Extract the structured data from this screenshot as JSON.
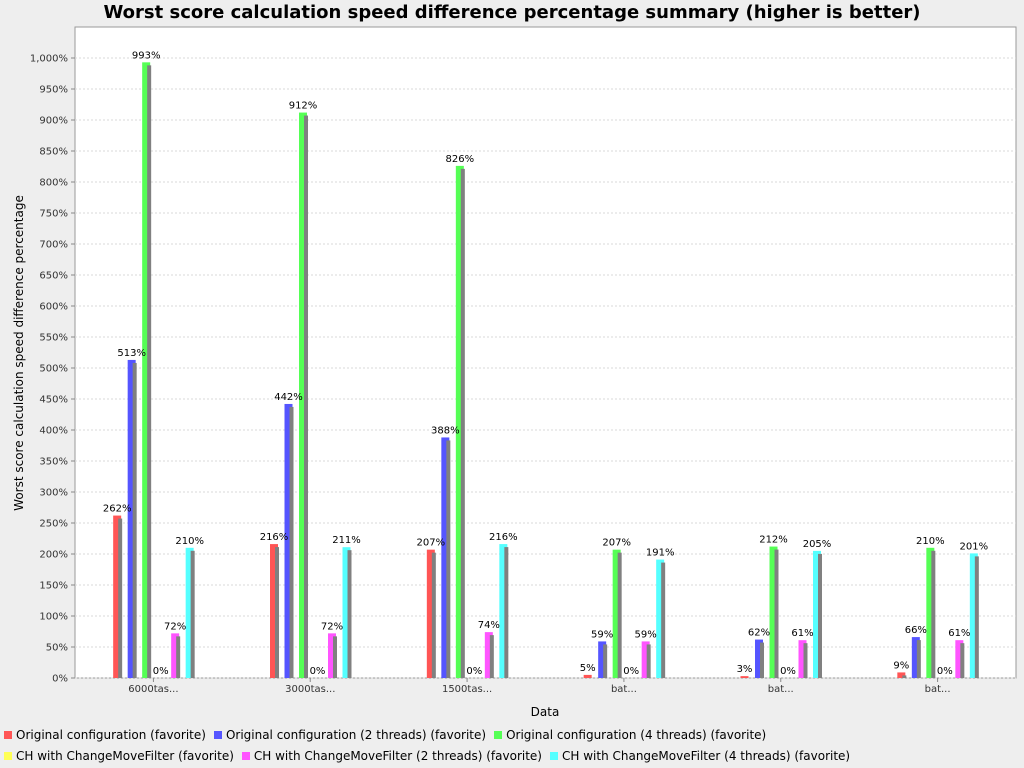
{
  "chart_data": {
    "type": "bar",
    "title": "Worst score calculation speed difference percentage summary (higher is better)",
    "xlabel": "Data",
    "ylabel": "Worst score calculation speed difference percentage",
    "ylim": [
      0,
      1050
    ],
    "y_tick_step": 50,
    "grid": true,
    "legend_position": "bottom",
    "categories": [
      "6000tas...",
      "3000tas...",
      "1500tas...",
      "bat...",
      "bat...",
      "bat..."
    ],
    "series": [
      {
        "name": "Original configuration (favorite)",
        "color": "#ff5555",
        "values": [
          262,
          216,
          207,
          5,
          3,
          9
        ],
        "labels": [
          "262%",
          "216%",
          "207%",
          "5%",
          "3%",
          "9%"
        ]
      },
      {
        "name": "Original configuration (2 threads) (favorite)",
        "color": "#5555ff",
        "values": [
          513,
          442,
          388,
          59,
          62,
          66
        ],
        "labels": [
          "513%",
          "442%",
          "388%",
          "59%",
          "62%",
          "66%"
        ]
      },
      {
        "name": "Original configuration (4 threads) (favorite)",
        "color": "#55ff55",
        "values": [
          993,
          912,
          826,
          207,
          212,
          210
        ],
        "labels": [
          "993%",
          "912%",
          "826%",
          "207%",
          "212%",
          "210%"
        ]
      },
      {
        "name": "CH with ChangeMoveFilter (favorite)",
        "color": "#ffff55",
        "values": [
          0,
          0,
          0,
          0,
          0,
          0
        ],
        "labels": [
          "0%",
          "0%",
          "0%",
          "0%",
          "0%",
          "0%"
        ]
      },
      {
        "name": "CH with ChangeMoveFilter (2 threads) (favorite)",
        "color": "#ff55ff",
        "values": [
          72,
          72,
          74,
          59,
          61,
          61
        ],
        "labels": [
          "72%",
          "72%",
          "74%",
          "59%",
          "61%",
          "61%"
        ]
      },
      {
        "name": "CH with ChangeMoveFilter (4 threads) (favorite)",
        "color": "#55ffff",
        "values": [
          210,
          211,
          216,
          191,
          205,
          201
        ],
        "labels": [
          "210%",
          "211%",
          "216%",
          "191%",
          "205%",
          "201%"
        ]
      }
    ]
  }
}
